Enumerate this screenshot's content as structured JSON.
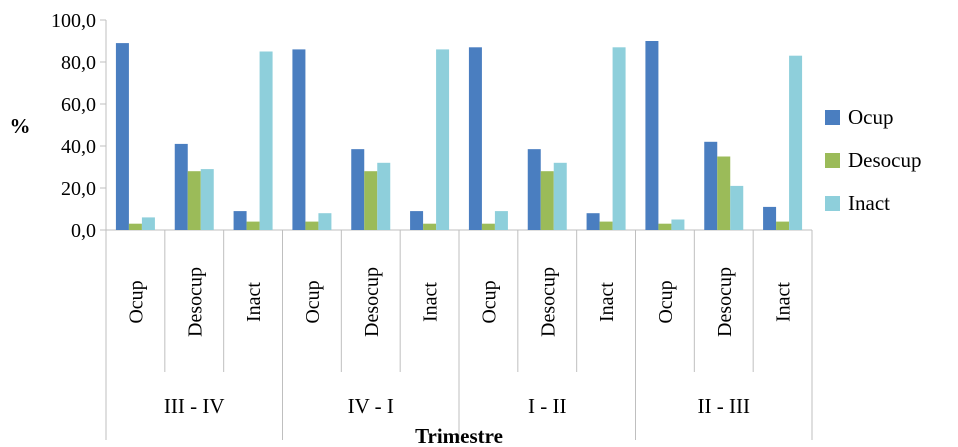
{
  "chart_data": {
    "type": "bar",
    "xlabel": "Trimestre",
    "ylabel": "%",
    "ylim": [
      0,
      100
    ],
    "yticks": [
      "0,0",
      "20,0",
      "40,0",
      "60,0",
      "80,0",
      "100,0"
    ],
    "grid": false,
    "legend": "right",
    "groups": [
      {
        "label": "III - IV",
        "categories": [
          "Ocup",
          "Desocup",
          "Inact"
        ]
      },
      {
        "label": "IV - I",
        "categories": [
          "Ocup",
          "Desocup",
          "Inact"
        ]
      },
      {
        "label": "I - II",
        "categories": [
          "Ocup",
          "Desocup",
          "Inact"
        ]
      },
      {
        "label": "II - III",
        "categories": [
          "Ocup",
          "Desocup",
          "Inact"
        ]
      }
    ],
    "series": [
      {
        "name": "Ocup",
        "color": "#4A7EC0",
        "values": [
          89,
          41,
          9,
          86,
          38.5,
          9,
          87,
          38.5,
          8,
          90,
          42,
          11
        ]
      },
      {
        "name": "Desocup",
        "color": "#9BBB59",
        "values": [
          3,
          28,
          4,
          4,
          28,
          3,
          3,
          28,
          4,
          3,
          35,
          4
        ]
      },
      {
        "name": "Inact",
        "color": "#8ECFDB",
        "values": [
          6,
          29,
          85,
          8,
          32,
          86,
          9,
          32,
          87,
          5,
          21,
          83
        ]
      }
    ]
  }
}
